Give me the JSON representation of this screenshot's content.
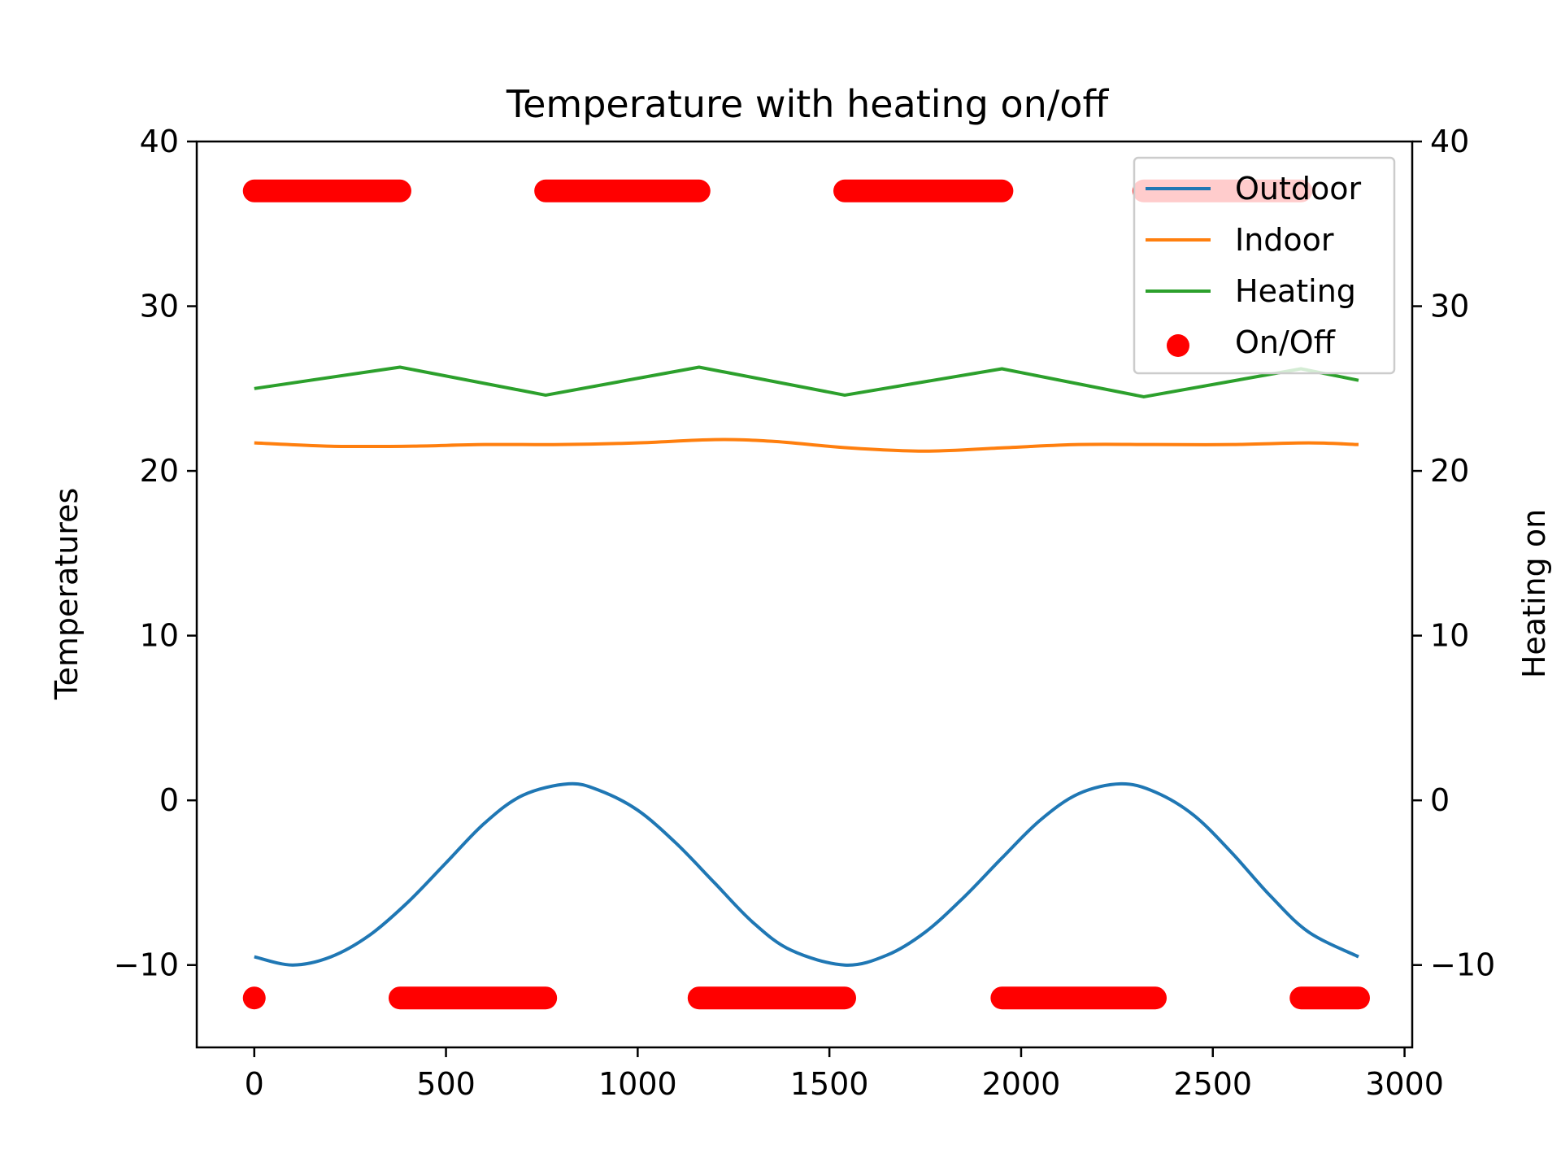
{
  "chart_data": {
    "type": "line",
    "title": "Temperature with heating on/off",
    "ylabel": "Temperatures",
    "ylabel_right": "Heating on",
    "xlim": [
      -150,
      3020
    ],
    "ylim": [
      -15,
      40
    ],
    "xticks": [
      0,
      500,
      1000,
      1500,
      2000,
      2500,
      3000
    ],
    "yticks": [
      -10,
      0,
      10,
      20,
      30,
      40
    ],
    "yticks_right": [
      -10,
      0,
      10,
      20,
      30,
      40
    ],
    "grid": false,
    "legend": {
      "placement": "top-right",
      "entries": [
        "Outdoor",
        "Indoor",
        "Heating",
        "On/Off"
      ]
    },
    "tick_labels": {
      "x": [
        "0",
        "500",
        "1000",
        "1500",
        "2000",
        "2500",
        "3000"
      ],
      "y": [
        "−10",
        "0",
        "10",
        "20",
        "30",
        "40"
      ],
      "y_right": [
        "−10",
        "0",
        "10",
        "20",
        "30",
        "40"
      ]
    },
    "series": [
      {
        "name": "Outdoor",
        "kind": "line",
        "color": "#1f77b4",
        "x": [
          0,
          100,
          200,
          300,
          400,
          500,
          600,
          700,
          820,
          900,
          1000,
          1100,
          1200,
          1300,
          1400,
          1540,
          1650,
          1750,
          1850,
          1950,
          2050,
          2150,
          2260,
          2350,
          2450,
          2550,
          2650,
          2750,
          2880
        ],
        "values": [
          -9.5,
          -10.0,
          -9.5,
          -8.2,
          -6.2,
          -3.8,
          -1.4,
          0.3,
          1.0,
          0.6,
          -0.6,
          -2.6,
          -5.0,
          -7.4,
          -9.1,
          -10.0,
          -9.4,
          -8.0,
          -5.9,
          -3.5,
          -1.2,
          0.4,
          1.0,
          0.5,
          -0.9,
          -3.2,
          -5.8,
          -8.0,
          -9.5
        ]
      },
      {
        "name": "Indoor",
        "kind": "line",
        "color": "#ff7f0e",
        "x": [
          0,
          200,
          400,
          600,
          800,
          1000,
          1200,
          1350,
          1550,
          1750,
          1950,
          2150,
          2350,
          2550,
          2750,
          2880
        ],
        "values": [
          21.7,
          21.5,
          21.5,
          21.6,
          21.6,
          21.7,
          21.9,
          21.8,
          21.4,
          21.2,
          21.4,
          21.6,
          21.6,
          21.6,
          21.7,
          21.6
        ]
      },
      {
        "name": "Heating",
        "kind": "line",
        "color": "#2ca02c",
        "x": [
          0,
          380,
          760,
          1160,
          1540,
          1950,
          2320,
          2730,
          2880
        ],
        "values": [
          25.0,
          26.3,
          24.6,
          26.3,
          24.6,
          26.2,
          24.5,
          26.2,
          25.5
        ]
      },
      {
        "name": "On/Off",
        "kind": "scatter",
        "color": "#ff0000",
        "on_value": 37,
        "off_value": -12,
        "on_intervals": [
          [
            0,
            380
          ],
          [
            760,
            1160
          ],
          [
            1540,
            1950
          ],
          [
            2320,
            2730
          ]
        ],
        "off_intervals": [
          [
            0,
            0
          ],
          [
            380,
            760
          ],
          [
            1160,
            1540
          ],
          [
            1950,
            2350
          ],
          [
            2730,
            2880
          ]
        ]
      }
    ]
  }
}
